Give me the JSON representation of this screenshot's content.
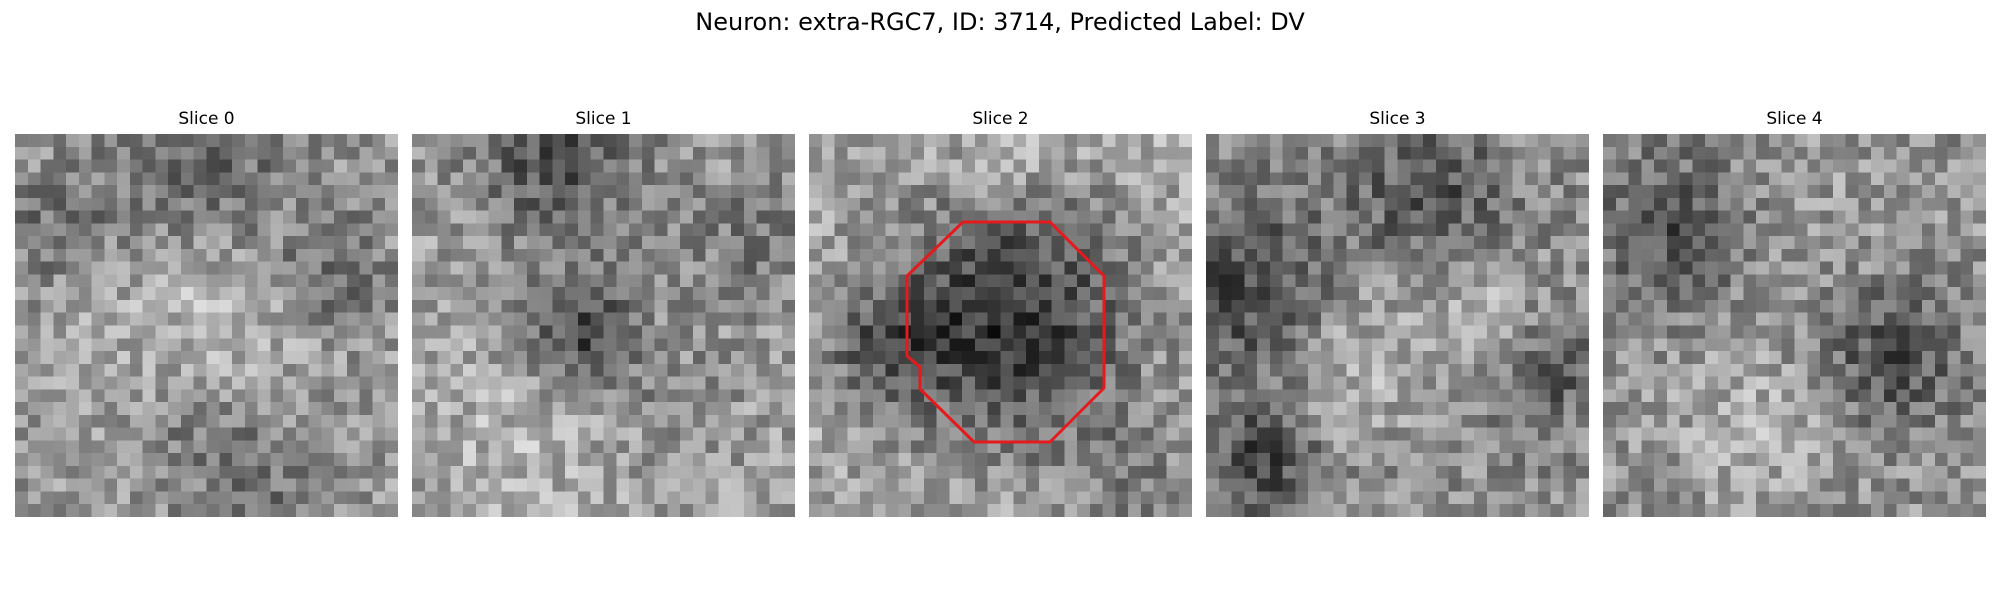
{
  "figure": {
    "title": "Neuron: extra-RGC7, ID: 3714, Predicted Label: DV"
  },
  "panels": [
    {
      "title": "Slice 0"
    },
    {
      "title": "Slice 1"
    },
    {
      "title": "Slice 2"
    },
    {
      "title": "Slice 3"
    },
    {
      "title": "Slice 4"
    }
  ],
  "overlay": {
    "contour_color": "#e41a1c",
    "contour_slice": "Slice 2"
  }
}
